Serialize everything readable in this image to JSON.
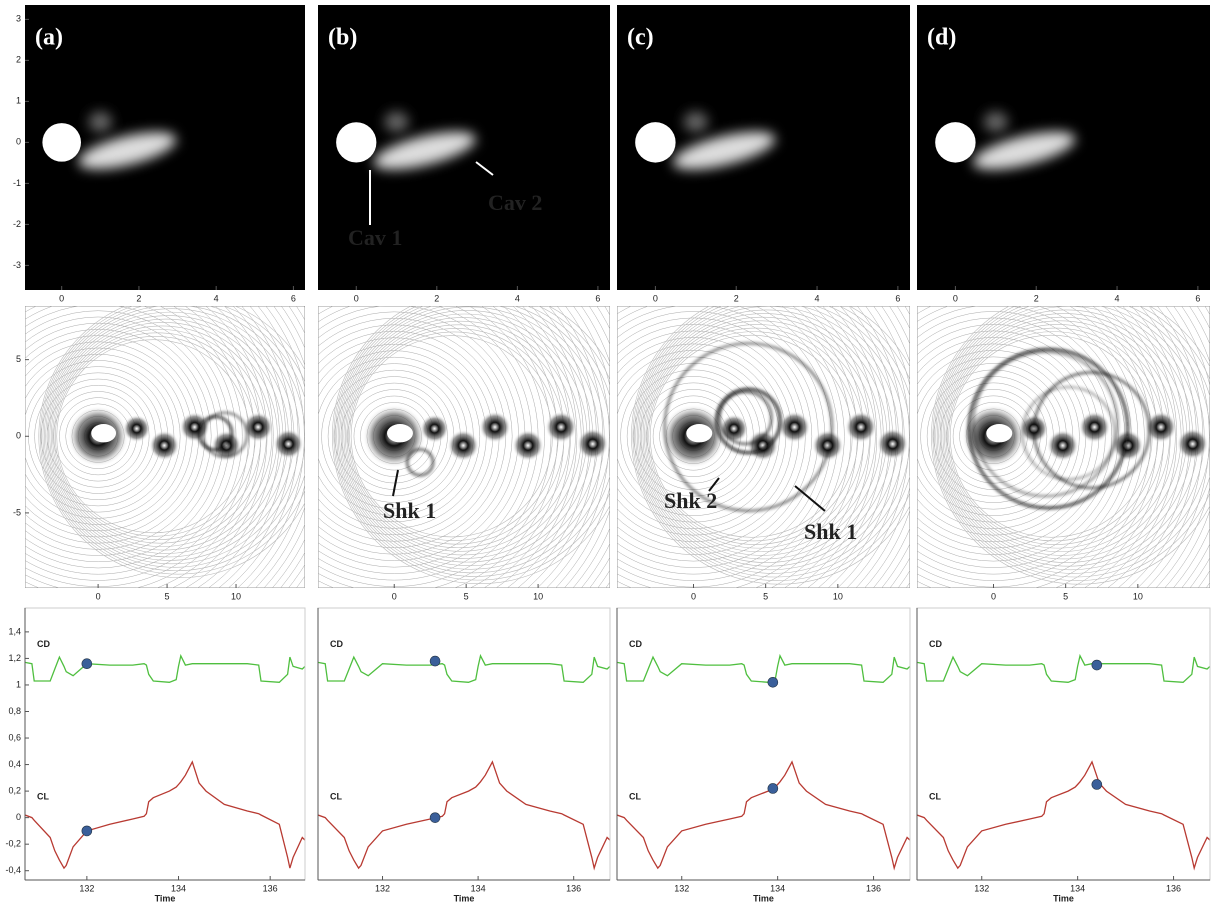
{
  "chart_data": [
    {
      "type": "field",
      "panel_label": "(a)",
      "xlim": [
        -0.95,
        6.3
      ],
      "ylim": [
        -3.6,
        3.35
      ],
      "xticks": [
        0,
        2,
        4,
        6
      ],
      "yticks": [
        3,
        2,
        1,
        0,
        -1,
        -2,
        -3
      ]
    },
    {
      "type": "contour",
      "xlim": [
        -5.3,
        15
      ],
      "ylim": [
        -9.9,
        8.5
      ],
      "xticks": [
        0,
        5,
        10
      ],
      "yticks": [
        5,
        0,
        -5
      ]
    },
    {
      "type": "line",
      "xlabel": "Time",
      "xlim": [
        130.65,
        136.76
      ],
      "ylim": [
        -0.47,
        1.58
      ],
      "xticks": [
        132,
        134,
        136
      ],
      "yticks": [
        {
          "value": 1.4,
          "label": "1,4"
        },
        {
          "value": 1.2,
          "label": "1,2"
        },
        1,
        {
          "value": 0.8,
          "label": "0,8"
        },
        {
          "value": 0.6,
          "label": "0,6"
        },
        {
          "value": 0.4,
          "label": "0,4"
        },
        {
          "value": 0.2,
          "label": "0,2"
        },
        0,
        {
          "value": -0.2,
          "label": "-0,2"
        },
        {
          "value": -0.4,
          "label": "-0,4"
        }
      ],
      "x": [
        130.65,
        130.8,
        130.85,
        131.2,
        131.3,
        131.4,
        131.5,
        131.55,
        131.7,
        132.0,
        132.5,
        133.0,
        133.25,
        133.3,
        133.35,
        133.45,
        133.8,
        133.95,
        134.0,
        134.05,
        134.15,
        134.3,
        134.45,
        134.6,
        135.0,
        135.5,
        135.75,
        135.8,
        136.2,
        136.38,
        136.43,
        136.5,
        136.7,
        136.76
      ],
      "series": [
        {
          "name": "CD",
          "color": "#4fbf3f",
          "values": [
            1.17,
            1.16,
            1.03,
            1.03,
            1.12,
            1.21,
            1.14,
            1.1,
            1.07,
            1.16,
            1.15,
            1.15,
            1.16,
            1.15,
            1.08,
            1.03,
            1.02,
            1.04,
            1.14,
            1.22,
            1.15,
            1.16,
            1.16,
            1.16,
            1.16,
            1.16,
            1.15,
            1.03,
            1.02,
            1.08,
            1.21,
            1.14,
            1.12,
            1.14
          ]
        },
        {
          "name": "CL",
          "color": "#b83a32",
          "values": [
            0.02,
            0.0,
            -0.02,
            -0.15,
            -0.25,
            -0.32,
            -0.38,
            -0.36,
            -0.22,
            -0.1,
            -0.05,
            -0.01,
            0.01,
            0.03,
            0.12,
            0.15,
            0.2,
            0.23,
            0.25,
            0.27,
            0.32,
            0.42,
            0.26,
            0.2,
            0.1,
            0.05,
            0.03,
            0.02,
            -0.05,
            -0.3,
            -0.38,
            -0.3,
            -0.15,
            -0.17
          ]
        }
      ],
      "markers": [
        {
          "x": 132.0,
          "y": 1.16
        },
        {
          "x": 132.0,
          "y": -0.1
        }
      ],
      "marker_color": "#3a5f9a"
    },
    {
      "type": "field",
      "panel_label": "(b)",
      "xlim": [
        -0.95,
        6.3
      ],
      "ylim": [
        -3.6,
        3.35
      ],
      "xticks": [
        0,
        2,
        4,
        6
      ],
      "annotations": [
        "Cav 1",
        "Cav 2"
      ]
    },
    {
      "type": "contour",
      "xlim": [
        -5.3,
        15
      ],
      "ylim": [
        -9.9,
        8.5
      ],
      "xticks": [
        0,
        5,
        10
      ],
      "annotations": [
        "Shk 1"
      ]
    },
    {
      "type": "line",
      "xlabel": "Time",
      "xlim": [
        130.65,
        136.76
      ],
      "ylim": [
        -0.47,
        1.58
      ],
      "xticks": [
        132,
        134,
        136
      ],
      "x": [
        130.65,
        130.8,
        130.85,
        131.2,
        131.3,
        131.4,
        131.5,
        131.55,
        131.7,
        132.0,
        132.5,
        133.0,
        133.25,
        133.3,
        133.35,
        133.45,
        133.8,
        133.95,
        134.0,
        134.05,
        134.15,
        134.3,
        134.45,
        134.6,
        135.0,
        135.5,
        135.75,
        135.8,
        136.2,
        136.38,
        136.43,
        136.5,
        136.7,
        136.76
      ],
      "series": [
        {
          "name": "CD",
          "color": "#4fbf3f",
          "values": [
            1.17,
            1.16,
            1.03,
            1.03,
            1.12,
            1.21,
            1.14,
            1.1,
            1.07,
            1.16,
            1.15,
            1.15,
            1.16,
            1.15,
            1.08,
            1.03,
            1.02,
            1.04,
            1.14,
            1.22,
            1.15,
            1.16,
            1.16,
            1.16,
            1.16,
            1.16,
            1.15,
            1.03,
            1.02,
            1.08,
            1.21,
            1.14,
            1.12,
            1.14
          ]
        },
        {
          "name": "CL",
          "color": "#b83a32",
          "values": [
            0.02,
            0.0,
            -0.02,
            -0.15,
            -0.25,
            -0.32,
            -0.38,
            -0.36,
            -0.22,
            -0.1,
            -0.05,
            -0.01,
            0.01,
            0.03,
            0.12,
            0.15,
            0.2,
            0.23,
            0.25,
            0.27,
            0.32,
            0.42,
            0.26,
            0.2,
            0.1,
            0.05,
            0.03,
            0.02,
            -0.05,
            -0.3,
            -0.38,
            -0.3,
            -0.15,
            -0.17
          ]
        }
      ],
      "markers": [
        {
          "x": 133.1,
          "y": 1.18
        },
        {
          "x": 133.1,
          "y": 0.0
        }
      ],
      "marker_color": "#3a5f9a"
    },
    {
      "type": "field",
      "panel_label": "(c)",
      "xlim": [
        -0.95,
        6.3
      ],
      "ylim": [
        -3.6,
        3.35
      ],
      "xticks": [
        0,
        2,
        4,
        6
      ]
    },
    {
      "type": "contour",
      "xlim": [
        -5.3,
        15
      ],
      "ylim": [
        -9.9,
        8.5
      ],
      "xticks": [
        0,
        5,
        10
      ],
      "annotations": [
        "Shk 2",
        "Shk 1"
      ]
    },
    {
      "type": "line",
      "xlabel": "Time",
      "xlim": [
        130.65,
        136.76
      ],
      "ylim": [
        -0.47,
        1.58
      ],
      "xticks": [
        132,
        134,
        136
      ],
      "x": [
        130.65,
        130.8,
        130.85,
        131.2,
        131.3,
        131.4,
        131.5,
        131.55,
        131.7,
        132.0,
        132.5,
        133.0,
        133.25,
        133.3,
        133.35,
        133.45,
        133.8,
        133.95,
        134.0,
        134.05,
        134.15,
        134.3,
        134.45,
        134.6,
        135.0,
        135.5,
        135.75,
        135.8,
        136.2,
        136.38,
        136.43,
        136.5,
        136.7,
        136.76
      ],
      "series": [
        {
          "name": "CD",
          "color": "#4fbf3f",
          "values": [
            1.17,
            1.16,
            1.03,
            1.03,
            1.12,
            1.21,
            1.14,
            1.1,
            1.07,
            1.16,
            1.15,
            1.15,
            1.16,
            1.15,
            1.08,
            1.03,
            1.02,
            1.04,
            1.14,
            1.22,
            1.15,
            1.16,
            1.16,
            1.16,
            1.16,
            1.16,
            1.15,
            1.03,
            1.02,
            1.08,
            1.21,
            1.14,
            1.12,
            1.14
          ]
        },
        {
          "name": "CL",
          "color": "#b83a32",
          "values": [
            0.02,
            0.0,
            -0.02,
            -0.15,
            -0.25,
            -0.32,
            -0.38,
            -0.36,
            -0.22,
            -0.1,
            -0.05,
            -0.01,
            0.01,
            0.03,
            0.12,
            0.15,
            0.2,
            0.23,
            0.25,
            0.27,
            0.32,
            0.42,
            0.26,
            0.2,
            0.1,
            0.05,
            0.03,
            0.02,
            -0.05,
            -0.3,
            -0.38,
            -0.3,
            -0.15,
            -0.17
          ]
        }
      ],
      "markers": [
        {
          "x": 133.9,
          "y": 1.02
        },
        {
          "x": 133.9,
          "y": 0.22
        }
      ],
      "marker_color": "#3a5f9a"
    },
    {
      "type": "field",
      "panel_label": "(d)",
      "xlim": [
        -0.95,
        6.3
      ],
      "ylim": [
        -3.6,
        3.35
      ],
      "xticks": [
        0,
        2,
        4,
        6
      ]
    },
    {
      "type": "contour",
      "xlim": [
        -5.3,
        15
      ],
      "ylim": [
        -9.9,
        8.5
      ],
      "xticks": [
        0,
        5,
        10
      ]
    },
    {
      "type": "line",
      "xlabel": "Time",
      "xlim": [
        130.65,
        136.76
      ],
      "ylim": [
        -0.47,
        1.58
      ],
      "xticks": [
        132,
        134,
        136
      ],
      "x": [
        130.65,
        130.8,
        130.85,
        131.2,
        131.3,
        131.4,
        131.5,
        131.55,
        131.7,
        132.0,
        132.5,
        133.0,
        133.25,
        133.3,
        133.35,
        133.45,
        133.8,
        133.95,
        134.0,
        134.05,
        134.15,
        134.3,
        134.45,
        134.6,
        135.0,
        135.5,
        135.75,
        135.8,
        136.2,
        136.38,
        136.43,
        136.5,
        136.7,
        136.76
      ],
      "series": [
        {
          "name": "CD",
          "color": "#4fbf3f",
          "values": [
            1.17,
            1.16,
            1.03,
            1.03,
            1.12,
            1.21,
            1.14,
            1.1,
            1.07,
            1.16,
            1.15,
            1.15,
            1.16,
            1.15,
            1.08,
            1.03,
            1.02,
            1.04,
            1.14,
            1.22,
            1.15,
            1.16,
            1.16,
            1.16,
            1.16,
            1.16,
            1.15,
            1.03,
            1.02,
            1.08,
            1.21,
            1.14,
            1.12,
            1.14
          ]
        },
        {
          "name": "CL",
          "color": "#b83a32",
          "values": [
            0.02,
            0.0,
            -0.02,
            -0.15,
            -0.25,
            -0.32,
            -0.38,
            -0.36,
            -0.22,
            -0.1,
            -0.05,
            -0.01,
            0.01,
            0.03,
            0.12,
            0.15,
            0.2,
            0.23,
            0.25,
            0.27,
            0.32,
            0.42,
            0.26,
            0.2,
            0.1,
            0.05,
            0.03,
            0.02,
            -0.05,
            -0.3,
            -0.38,
            -0.3,
            -0.15,
            -0.17
          ]
        }
      ],
      "markers": [
        {
          "x": 134.4,
          "y": 1.15
        },
        {
          "x": 134.4,
          "y": 0.25
        }
      ],
      "marker_color": "#3a5f9a"
    }
  ]
}
